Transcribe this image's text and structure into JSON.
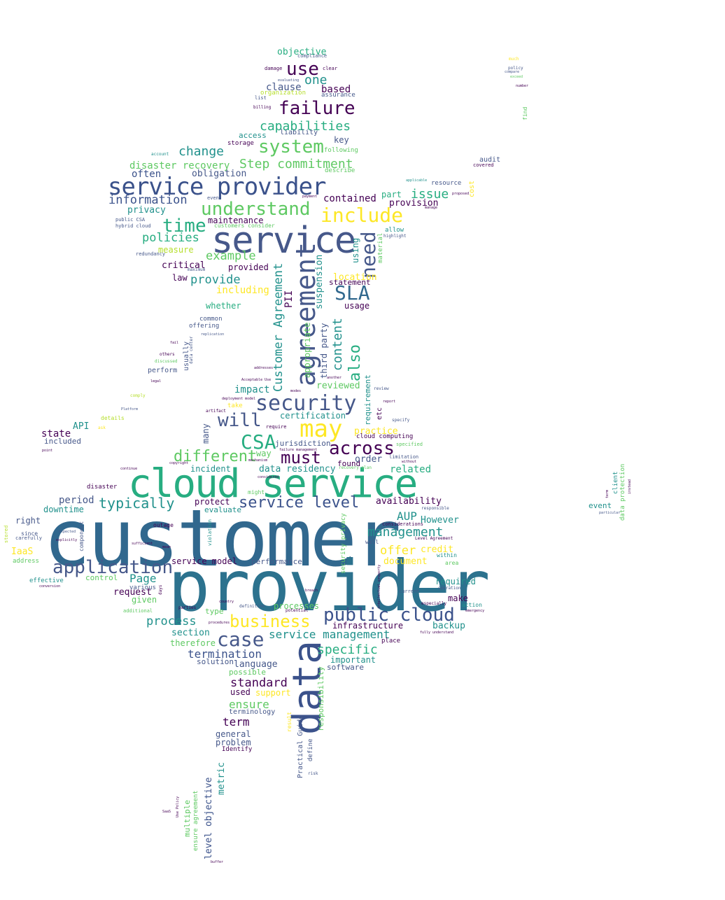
{
  "palette": {
    "purple": "#440154",
    "indigo": "#3b528b",
    "slate": "#46588a",
    "teal": "#21918c",
    "blueteal": "#2c728e",
    "green": "#27ad81",
    "lime": "#5ec962",
    "yellow": "#fde725",
    "yellowgreen": "#b5de2b",
    "background": "#ffffff"
  },
  "words": {
    "customer": "customer",
    "provider": "provider",
    "cloud_service": "cloud service",
    "service": "service",
    "service_provider": "service provider",
    "data": "data",
    "agreement": "agreement",
    "security": "security",
    "may": "may",
    "application": "application",
    "public_cloud": "public cloud",
    "business": "business",
    "case": "case",
    "failure": "failure",
    "system": "system",
    "capabilities": "capabilities",
    "understand": "understand",
    "include": "include",
    "time": "time",
    "will": "will",
    "csa": "CSA",
    "across": "across",
    "must": "must",
    "different": "different",
    "service_level": "service level",
    "typically": "typically",
    "management": "management",
    "sla": "SLA",
    "need": "need",
    "use": "use",
    "one": "one",
    "objective": "objective",
    "clause": "clause",
    "based": "based",
    "change": "change",
    "step_commitment": "Step commitment",
    "disaster_recovery": "disaster recovery",
    "often": "often",
    "obligation": "obligation",
    "information": "information",
    "privacy": "privacy",
    "contained": "contained",
    "issue": "issue",
    "part": "part",
    "provision": "provision",
    "maintenance": "maintenance",
    "policies": "policies",
    "example": "example",
    "critical": "critical",
    "provided": "provided",
    "provide": "provide",
    "including": "including",
    "law": "law",
    "whether": "whether",
    "measure": "measure",
    "customer_agreement": "Customer Agreement",
    "third_party": "third party",
    "content": "content",
    "also": "also",
    "suspension": "suspension",
    "appropriate": "appropriate",
    "using": "using",
    "location": "location",
    "statement": "statement",
    "usage": "usage",
    "pii": "PII",
    "impact": "impact",
    "reviewed": "reviewed",
    "requirement": "requirement",
    "certification": "certification",
    "practice": "practice",
    "api": "API",
    "state": "state",
    "included": "included",
    "many": "many",
    "way": "way",
    "jurisdiction": "jurisdiction",
    "order": "order",
    "related": "related",
    "data_residency": "data residency",
    "incident": "incident",
    "found": "found",
    "period": "period",
    "downtime": "downtime",
    "protect": "protect",
    "evaluate": "evaluate",
    "availability": "availability",
    "aup": "AUP",
    "however": "However",
    "right": "right",
    "iaas": "IaaS",
    "offer": "offer",
    "credit": "credit",
    "document": "document",
    "service_model": "service model",
    "performance": "performance",
    "page": "Page",
    "control": "control",
    "required": "required",
    "request": "request",
    "given": "given",
    "make": "make",
    "process": "process",
    "processes": "processes",
    "backup": "backup",
    "infrastructure": "infrastructure",
    "section": "section",
    "service_management": "service management",
    "therefore": "therefore",
    "termination": "termination",
    "specific": "specific",
    "important": "important",
    "solution": "solution",
    "language": "language",
    "software": "software",
    "possible": "possible",
    "standard": "standard",
    "used": "used",
    "support": "support",
    "ensure": "ensure",
    "terminology": "terminology",
    "term": "term",
    "general": "general",
    "problem": "problem",
    "identify": "Identify",
    "responsibility": "responsibility",
    "practical_guide": "Practical Guide",
    "define": "define",
    "level_objective": "level objective",
    "metric": "metric",
    "multiple": "multiple",
    "ensure_agreement": "ensure agreement",
    "access": "access",
    "liability": "liability",
    "key": "key",
    "storage": "storage",
    "resource": "resource",
    "audit": "audit",
    "covered": "covered",
    "cost": "cost",
    "find": "find",
    "event": "event",
    "client": "client",
    "data_protection": "data protection",
    "usually": "usually",
    "common": "common",
    "offering": "offering",
    "perform": "perform",
    "others": "others",
    "discussed": "discussed",
    "details": "details",
    "disaster": "disaster",
    "outage": "outage",
    "since": "since",
    "carefully": "carefully",
    "component": "component",
    "address": "address",
    "effective": "effective",
    "various": "various",
    "additional": "additional",
    "type": "type",
    "definition": "definition",
    "potential": "potential",
    "parties": "parties",
    "current": "current",
    "operation": "operation",
    "action": "action",
    "within": "within",
    "area": "area",
    "place": "place",
    "security_privacy": "security privacy",
    "might": "might",
    "considerations": "considerations",
    "well": "well",
    "cloud_computing": "cloud computing",
    "specified": "specified",
    "limitation": "limitation",
    "require": "require",
    "addition": "addition",
    "take": "take",
    "artifact": "artifact",
    "especially": "especially",
    "result": "result",
    "risk": "risk",
    "compliance": "compliance",
    "damage": "damage",
    "clear": "clear",
    "organization": "organization",
    "assurance": "assurance",
    "list": "list",
    "billing": "billing",
    "following": "following",
    "describe": "describe",
    "account": "account",
    "public_csa": "public CSA",
    "hybrid_cloud": "hybrid cloud",
    "redundancy": "redundancy",
    "maximum": "maximum",
    "review": "review",
    "report": "report",
    "specify": "specify",
    "etc": "etc",
    "state2": "state",
    "mechanism": "mechanism",
    "considered": "considered",
    "copyright": "copyright",
    "continue": "continue",
    "allow": "allow",
    "highlight": "highlight",
    "material": "material",
    "even": "even",
    "payment": "payment",
    "proposed": "proposed",
    "applicable": "applicable",
    "manage": "manage",
    "policy": "policy",
    "compare": "compare",
    "number": "number",
    "exceed": "exceed",
    "much": "much",
    "evaluating": "evaluating",
    "customers_consider": "customers consider",
    "data_center": "data center",
    "replication": "replication",
    "comply": "comply",
    "legal": "legal",
    "platform": "Platform",
    "ask": "ask",
    "deployment_model": "deployment model",
    "acceptable_use": "Acceptable Use",
    "failure_management": "failure management",
    "recovery_plan": "recovery plan",
    "level_agreement": "Level Agreement",
    "without": "without",
    "responsible": "responsible",
    "expected": "expected",
    "explicitly": "explicitly",
    "stored": "stored",
    "violation": "violation",
    "sufficient": "sufficient",
    "mean": "mean",
    "days": "days",
    "breach": "breach",
    "conversion": "conversion",
    "emergency": "emergency",
    "fully_understand": "fully understand",
    "procedures": "procedures",
    "intellectual_property": "intellectual property",
    "country": "country",
    "saas": "SaaS",
    "use_policy": "Use Policy",
    "buffer": "buffer",
    "particular": "particular",
    "instead": "instead",
    "term2": "term",
    "another": "another",
    "addresses": "addresses",
    "fail": "fail",
    "modes": "modes",
    "point": "point"
  }
}
